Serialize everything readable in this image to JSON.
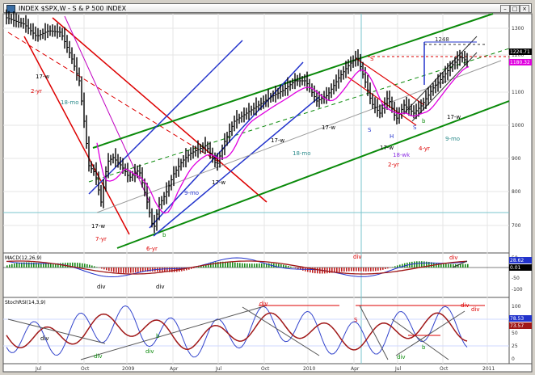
{
  "window": {
    "title": "INDEX $SPX,W - S & P 500 INDEX",
    "buttons": [
      "–",
      "□",
      "×"
    ]
  },
  "chart_data": [
    {
      "type": "candlestick",
      "title": "INDEX $SPX,W - S & P 500 INDEX",
      "yticks": [
        700,
        800,
        900,
        1000,
        1100,
        1200,
        1300
      ],
      "ylim": [
        640,
        1340
      ],
      "ylog": true,
      "xticks": [
        "Jul",
        "Oct",
        "2009",
        "Apr",
        "Jul",
        "Oct",
        "2010",
        "Apr",
        "Jul",
        "Oct",
        "2011"
      ],
      "last_price": "1224.71",
      "ma_value": "1180.32",
      "annotations": [
        "2-yr",
        "17-w",
        "18-mo",
        "9-mo",
        "7-yr",
        "6-yr",
        "b",
        "17-w",
        "18-mo",
        "S",
        "S",
        "H",
        "S",
        "b",
        "17-w",
        "17-w",
        "18-wk",
        "2-yr",
        "4-yr",
        "9-mo",
        "17-w",
        "1248",
        "17-w",
        "17-w"
      ]
    },
    {
      "type": "line",
      "title": "MACD(12,26,9)",
      "yticks": [
        50,
        0,
        -50,
        -100
      ],
      "values": [
        "28.62",
        "0.01"
      ],
      "annotations": [
        "div",
        "div",
        "div",
        "div"
      ]
    },
    {
      "type": "line",
      "title": "StochRSI(14,3,9)",
      "yticks": [
        100,
        75,
        50,
        25,
        0
      ],
      "values": [
        "78.53",
        "73.57"
      ],
      "annotations": [
        "div",
        "div",
        "div",
        "div",
        "div",
        "S",
        "b",
        "b",
        "div",
        "div"
      ]
    }
  ]
}
